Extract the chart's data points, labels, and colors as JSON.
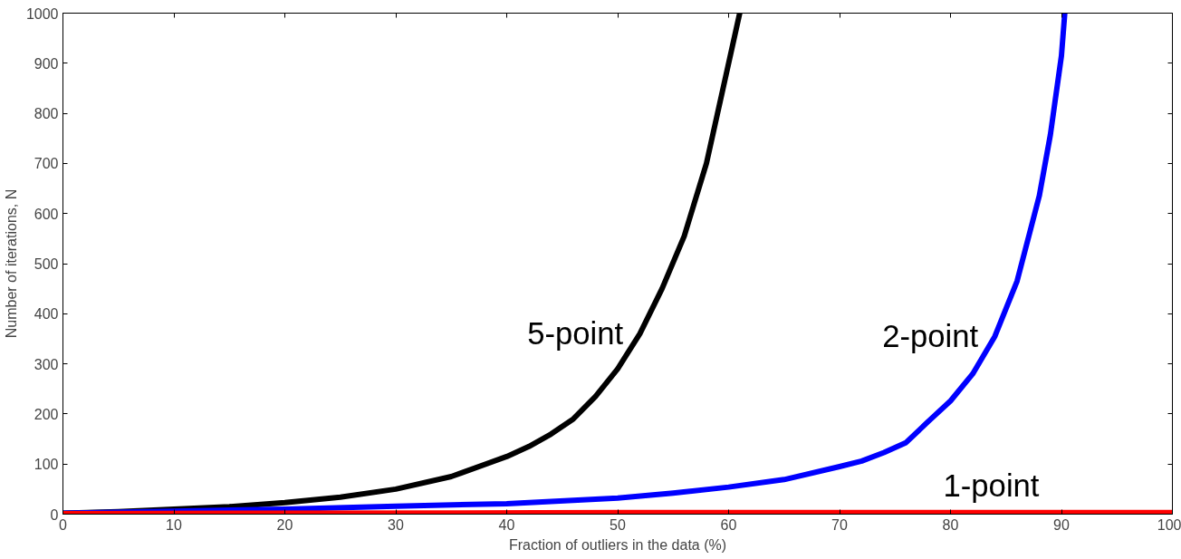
{
  "chart_data": {
    "type": "line",
    "xlabel": "Fraction of outliers in the data (%)",
    "ylabel": "Number of iterations, N",
    "xlim": [
      0,
      100
    ],
    "ylim": [
      0,
      1000
    ],
    "xticks": [
      0,
      10,
      20,
      30,
      40,
      50,
      60,
      70,
      80,
      90,
      100
    ],
    "yticks": [
      0,
      100,
      200,
      300,
      400,
      500,
      600,
      700,
      800,
      900,
      1000
    ],
    "grid": false,
    "series": [
      {
        "name": "5-point",
        "color": "#000000",
        "x": [
          0,
          5,
          10,
          15,
          20,
          25,
          30,
          35,
          40,
          42,
          44,
          46,
          48,
          50,
          52,
          54,
          56,
          58,
          59,
          60,
          61
        ],
        "values": [
          2,
          5,
          10,
          15,
          23,
          34,
          50,
          75,
          115,
          135,
          160,
          190,
          235,
          290,
          360,
          450,
          555,
          700,
          800,
          900,
          1000
        ]
      },
      {
        "name": "2-point",
        "color": "#0000ff",
        "x": [
          0,
          10,
          20,
          30,
          40,
          50,
          55,
          60,
          65,
          70,
          72,
          74,
          76,
          78,
          80,
          82,
          84,
          86,
          88,
          89,
          90,
          90.3
        ],
        "values": [
          2,
          6,
          10,
          16,
          21,
          32,
          42,
          54,
          69,
          95,
          106,
          123,
          143,
          185,
          226,
          280,
          355,
          465,
          635,
          757,
          915,
          1000
        ]
      },
      {
        "name": "1-point",
        "color": "#ff0000",
        "x": [
          0,
          50,
          100
        ],
        "values": [
          1,
          3,
          3
        ]
      }
    ]
  }
}
